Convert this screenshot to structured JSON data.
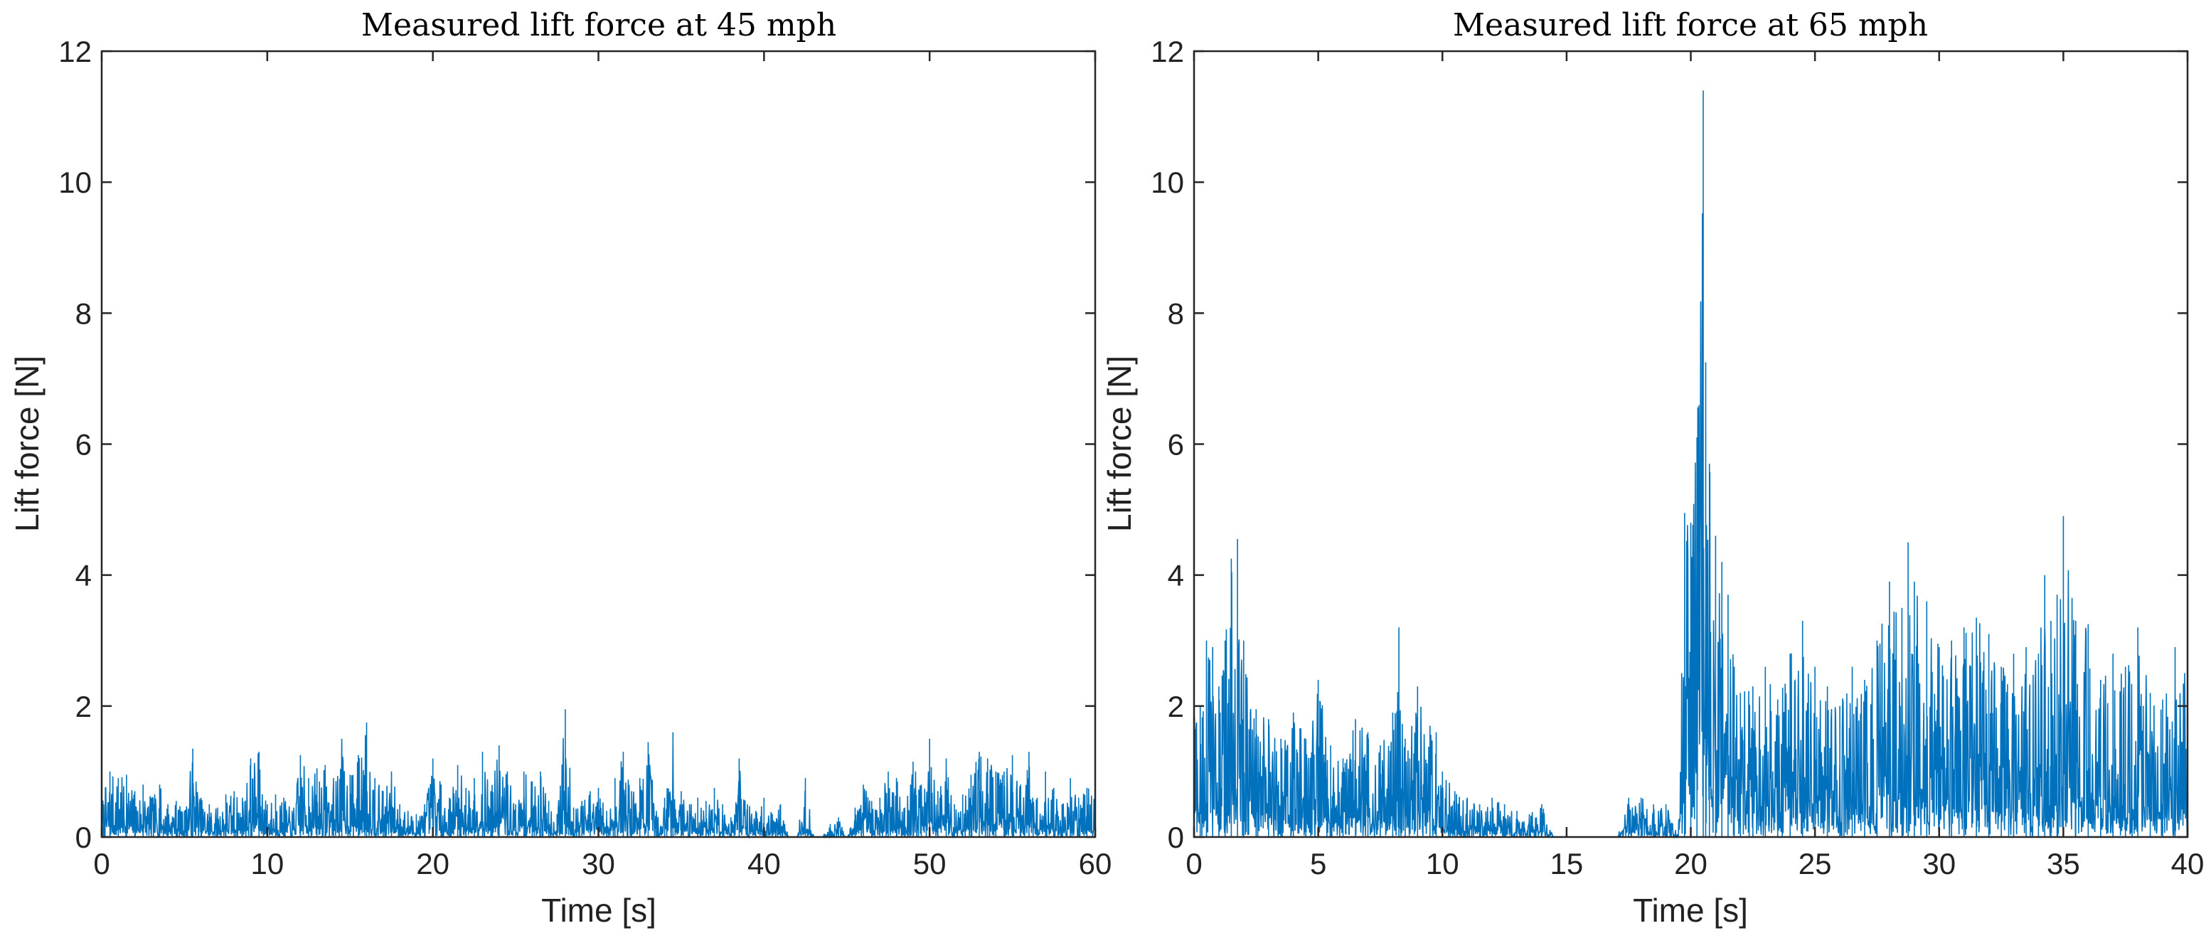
{
  "chart_data": [
    {
      "type": "line",
      "title": "Measured lift force at 45 mph",
      "xlabel": "Time [s]",
      "ylabel": "Lift force [N]",
      "xlim": [
        0,
        60
      ],
      "ylim": [
        0,
        12
      ],
      "xticks": [
        0,
        10,
        20,
        30,
        40,
        50,
        60
      ],
      "yticks": [
        0,
        2,
        4,
        6,
        8,
        10,
        12
      ],
      "grid": false,
      "color": "#0072BD",
      "series": [
        {
          "name": "Lift force",
          "x": [
            0.0,
            0.5,
            1.0,
            1.5,
            2.0,
            2.5,
            3.0,
            3.5,
            4.0,
            4.5,
            5.0,
            5.5,
            6.0,
            6.5,
            7.0,
            7.5,
            8.0,
            8.5,
            9.0,
            9.5,
            10.0,
            10.5,
            11.0,
            11.5,
            12.0,
            12.5,
            13.0,
            13.5,
            14.0,
            14.5,
            15.0,
            15.5,
            16.0,
            16.5,
            17.0,
            17.5,
            18.0,
            18.5,
            19.0,
            19.5,
            20.0,
            20.5,
            21.0,
            21.5,
            22.0,
            22.5,
            23.0,
            23.5,
            24.0,
            24.5,
            25.0,
            25.5,
            26.0,
            26.5,
            27.0,
            27.5,
            28.0,
            28.5,
            29.0,
            29.5,
            30.0,
            30.5,
            31.0,
            31.5,
            32.0,
            32.5,
            33.0,
            33.5,
            34.0,
            34.5,
            35.0,
            35.5,
            36.0,
            36.5,
            37.0,
            37.5,
            38.0,
            38.5,
            39.0,
            39.5,
            40.0,
            40.5,
            41.0,
            41.5,
            42.0,
            42.5,
            43.0,
            43.5,
            44.0,
            44.5,
            45.0,
            45.5,
            46.0,
            46.5,
            47.0,
            47.5,
            48.0,
            48.5,
            49.0,
            49.5,
            50.0,
            50.5,
            51.0,
            51.5,
            52.0,
            52.5,
            53.0,
            53.5,
            54.0,
            54.5,
            55.0,
            55.5,
            56.0,
            56.5,
            57.0,
            57.5,
            58.0,
            58.5,
            59.0,
            59.5
          ],
          "values": [
            0.6,
            1.0,
            0.9,
            0.95,
            0.7,
            0.8,
            0.6,
            0.8,
            0.5,
            0.55,
            0.4,
            1.35,
            0.6,
            0.5,
            0.45,
            0.65,
            0.7,
            0.6,
            1.2,
            1.3,
            0.5,
            0.65,
            0.6,
            0.4,
            1.25,
            0.9,
            1.05,
            1.1,
            0.9,
            1.5,
            0.95,
            1.25,
            1.75,
            0.9,
            0.7,
            1.0,
            0.5,
            0.4,
            0.35,
            0.5,
            1.2,
            0.8,
            0.6,
            1.1,
            0.75,
            0.9,
            1.3,
            0.7,
            1.4,
            1.0,
            0.5,
            1.0,
            0.85,
            1.0,
            0.55,
            0.35,
            1.95,
            0.45,
            0.55,
            0.7,
            0.75,
            0.4,
            0.9,
            1.3,
            0.7,
            0.9,
            1.45,
            0.4,
            0.6,
            1.6,
            0.7,
            0.5,
            0.6,
            0.55,
            0.75,
            0.5,
            0.3,
            1.2,
            0.5,
            0.4,
            0.6,
            0.35,
            0.5,
            0.0,
            0.0,
            0.9,
            0.0,
            0.0,
            0.2,
            0.3,
            0.0,
            0.45,
            0.8,
            0.55,
            0.6,
            1.0,
            0.9,
            0.45,
            1.15,
            0.8,
            1.5,
            0.7,
            1.2,
            0.5,
            0.65,
            0.95,
            1.3,
            1.2,
            1.0,
            1.0,
            1.25,
            0.8,
            1.3,
            0.6,
            1.0,
            0.75,
            0.5,
            0.9,
            0.6,
            0.75
          ]
        }
      ]
    },
    {
      "type": "line",
      "title": "Measured lift force at 65 mph",
      "xlabel": "Time [s]",
      "ylabel": "Lift force [N]",
      "xlim": [
        0,
        40
      ],
      "ylim": [
        0,
        12
      ],
      "xticks": [
        0,
        5,
        10,
        15,
        20,
        25,
        30,
        35,
        40
      ],
      "yticks": [
        0,
        2,
        4,
        6,
        8,
        10,
        12
      ],
      "grid": false,
      "color": "#0072BD",
      "series": [
        {
          "name": "Lift force",
          "x": [
            0.0,
            0.25,
            0.5,
            0.75,
            1.0,
            1.25,
            1.5,
            1.75,
            2.0,
            2.5,
            3.0,
            3.5,
            4.0,
            4.5,
            5.0,
            5.5,
            6.0,
            6.5,
            7.0,
            7.5,
            8.0,
            8.25,
            8.5,
            9.0,
            9.5,
            9.75,
            10.0,
            10.5,
            11.0,
            11.5,
            12.0,
            12.5,
            13.0,
            13.5,
            14.0,
            14.5,
            15.0,
            15.5,
            16.0,
            16.5,
            17.0,
            17.5,
            18.0,
            18.5,
            19.0,
            19.5,
            19.75,
            20.0,
            20.25,
            20.5,
            20.6,
            20.75,
            21.0,
            21.25,
            21.5,
            21.75,
            22.0,
            22.5,
            23.0,
            23.5,
            24.0,
            24.5,
            25.0,
            25.5,
            26.0,
            26.5,
            27.0,
            27.5,
            28.0,
            28.5,
            28.75,
            29.0,
            29.5,
            30.0,
            30.5,
            31.0,
            31.5,
            32.0,
            32.5,
            33.0,
            33.5,
            34.0,
            34.25,
            34.5,
            34.75,
            35.0,
            35.5,
            36.0,
            36.5,
            37.0,
            37.5,
            38.0,
            38.5,
            39.0,
            39.5
          ],
          "values": [
            3.1,
            2.0,
            3.0,
            2.9,
            2.3,
            3.0,
            4.25,
            4.55,
            3.0,
            1.95,
            1.8,
            1.5,
            1.9,
            1.5,
            2.4,
            1.4,
            1.2,
            1.8,
            1.6,
            1.4,
            1.9,
            3.2,
            1.5,
            2.3,
            1.7,
            1.6,
            1.0,
            0.7,
            0.6,
            0.5,
            0.6,
            0.5,
            0.4,
            0.35,
            0.5,
            0.0,
            0.0,
            0.0,
            0.0,
            0.0,
            0.0,
            0.6,
            0.6,
            0.5,
            0.5,
            0.0,
            4.95,
            4.8,
            6.1,
            11.4,
            7.25,
            5.7,
            4.6,
            4.2,
            3.7,
            2.6,
            2.2,
            2.3,
            2.6,
            2.1,
            2.8,
            3.3,
            2.6,
            2.3,
            2.0,
            2.6,
            2.4,
            3.0,
            3.9,
            3.5,
            4.5,
            3.9,
            3.6,
            2.9,
            3.0,
            3.2,
            3.35,
            3.1,
            2.6,
            2.8,
            2.9,
            2.8,
            4.0,
            3.3,
            3.7,
            4.9,
            3.3,
            3.25,
            2.4,
            2.8,
            2.6,
            3.2,
            2.2,
            2.1,
            2.9
          ]
        }
      ]
    }
  ]
}
